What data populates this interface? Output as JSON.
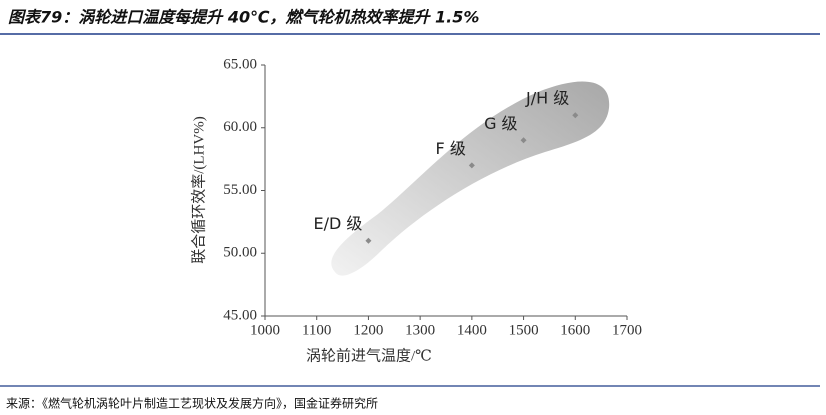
{
  "header": {
    "title": "图表79：涡轮进口温度每提升 40℃，燃气轮机热效率提升 1.5%"
  },
  "chart_data": {
    "type": "scatter",
    "x_label": "涡轮前进气温度/℃",
    "y_label": "联合循环效率/(LHV%)",
    "x": [
      1200,
      1400,
      1500,
      1600
    ],
    "values": [
      51,
      57,
      59,
      61
    ],
    "point_labels": [
      "E/D 级",
      "F 级",
      "G 级",
      "J/H 级"
    ],
    "color": "#8a8a8a",
    "xlim": [
      1000,
      1700
    ],
    "xticks": [
      1000,
      1100,
      1200,
      1300,
      1400,
      1500,
      1600,
      1700
    ],
    "ylim": [
      45,
      65
    ],
    "yticks": [
      {
        "value": 45,
        "label": "45.00"
      },
      {
        "value": 50,
        "label": "50.00"
      },
      {
        "value": 55,
        "label": "55.00"
      },
      {
        "value": 60,
        "label": "60.00"
      },
      {
        "value": 65,
        "label": "65.00"
      }
    ]
  },
  "footer": {
    "source": "来源：《燃气轮机涡轮叶片制造工艺现状及发展方向》，国金证券研究所"
  }
}
